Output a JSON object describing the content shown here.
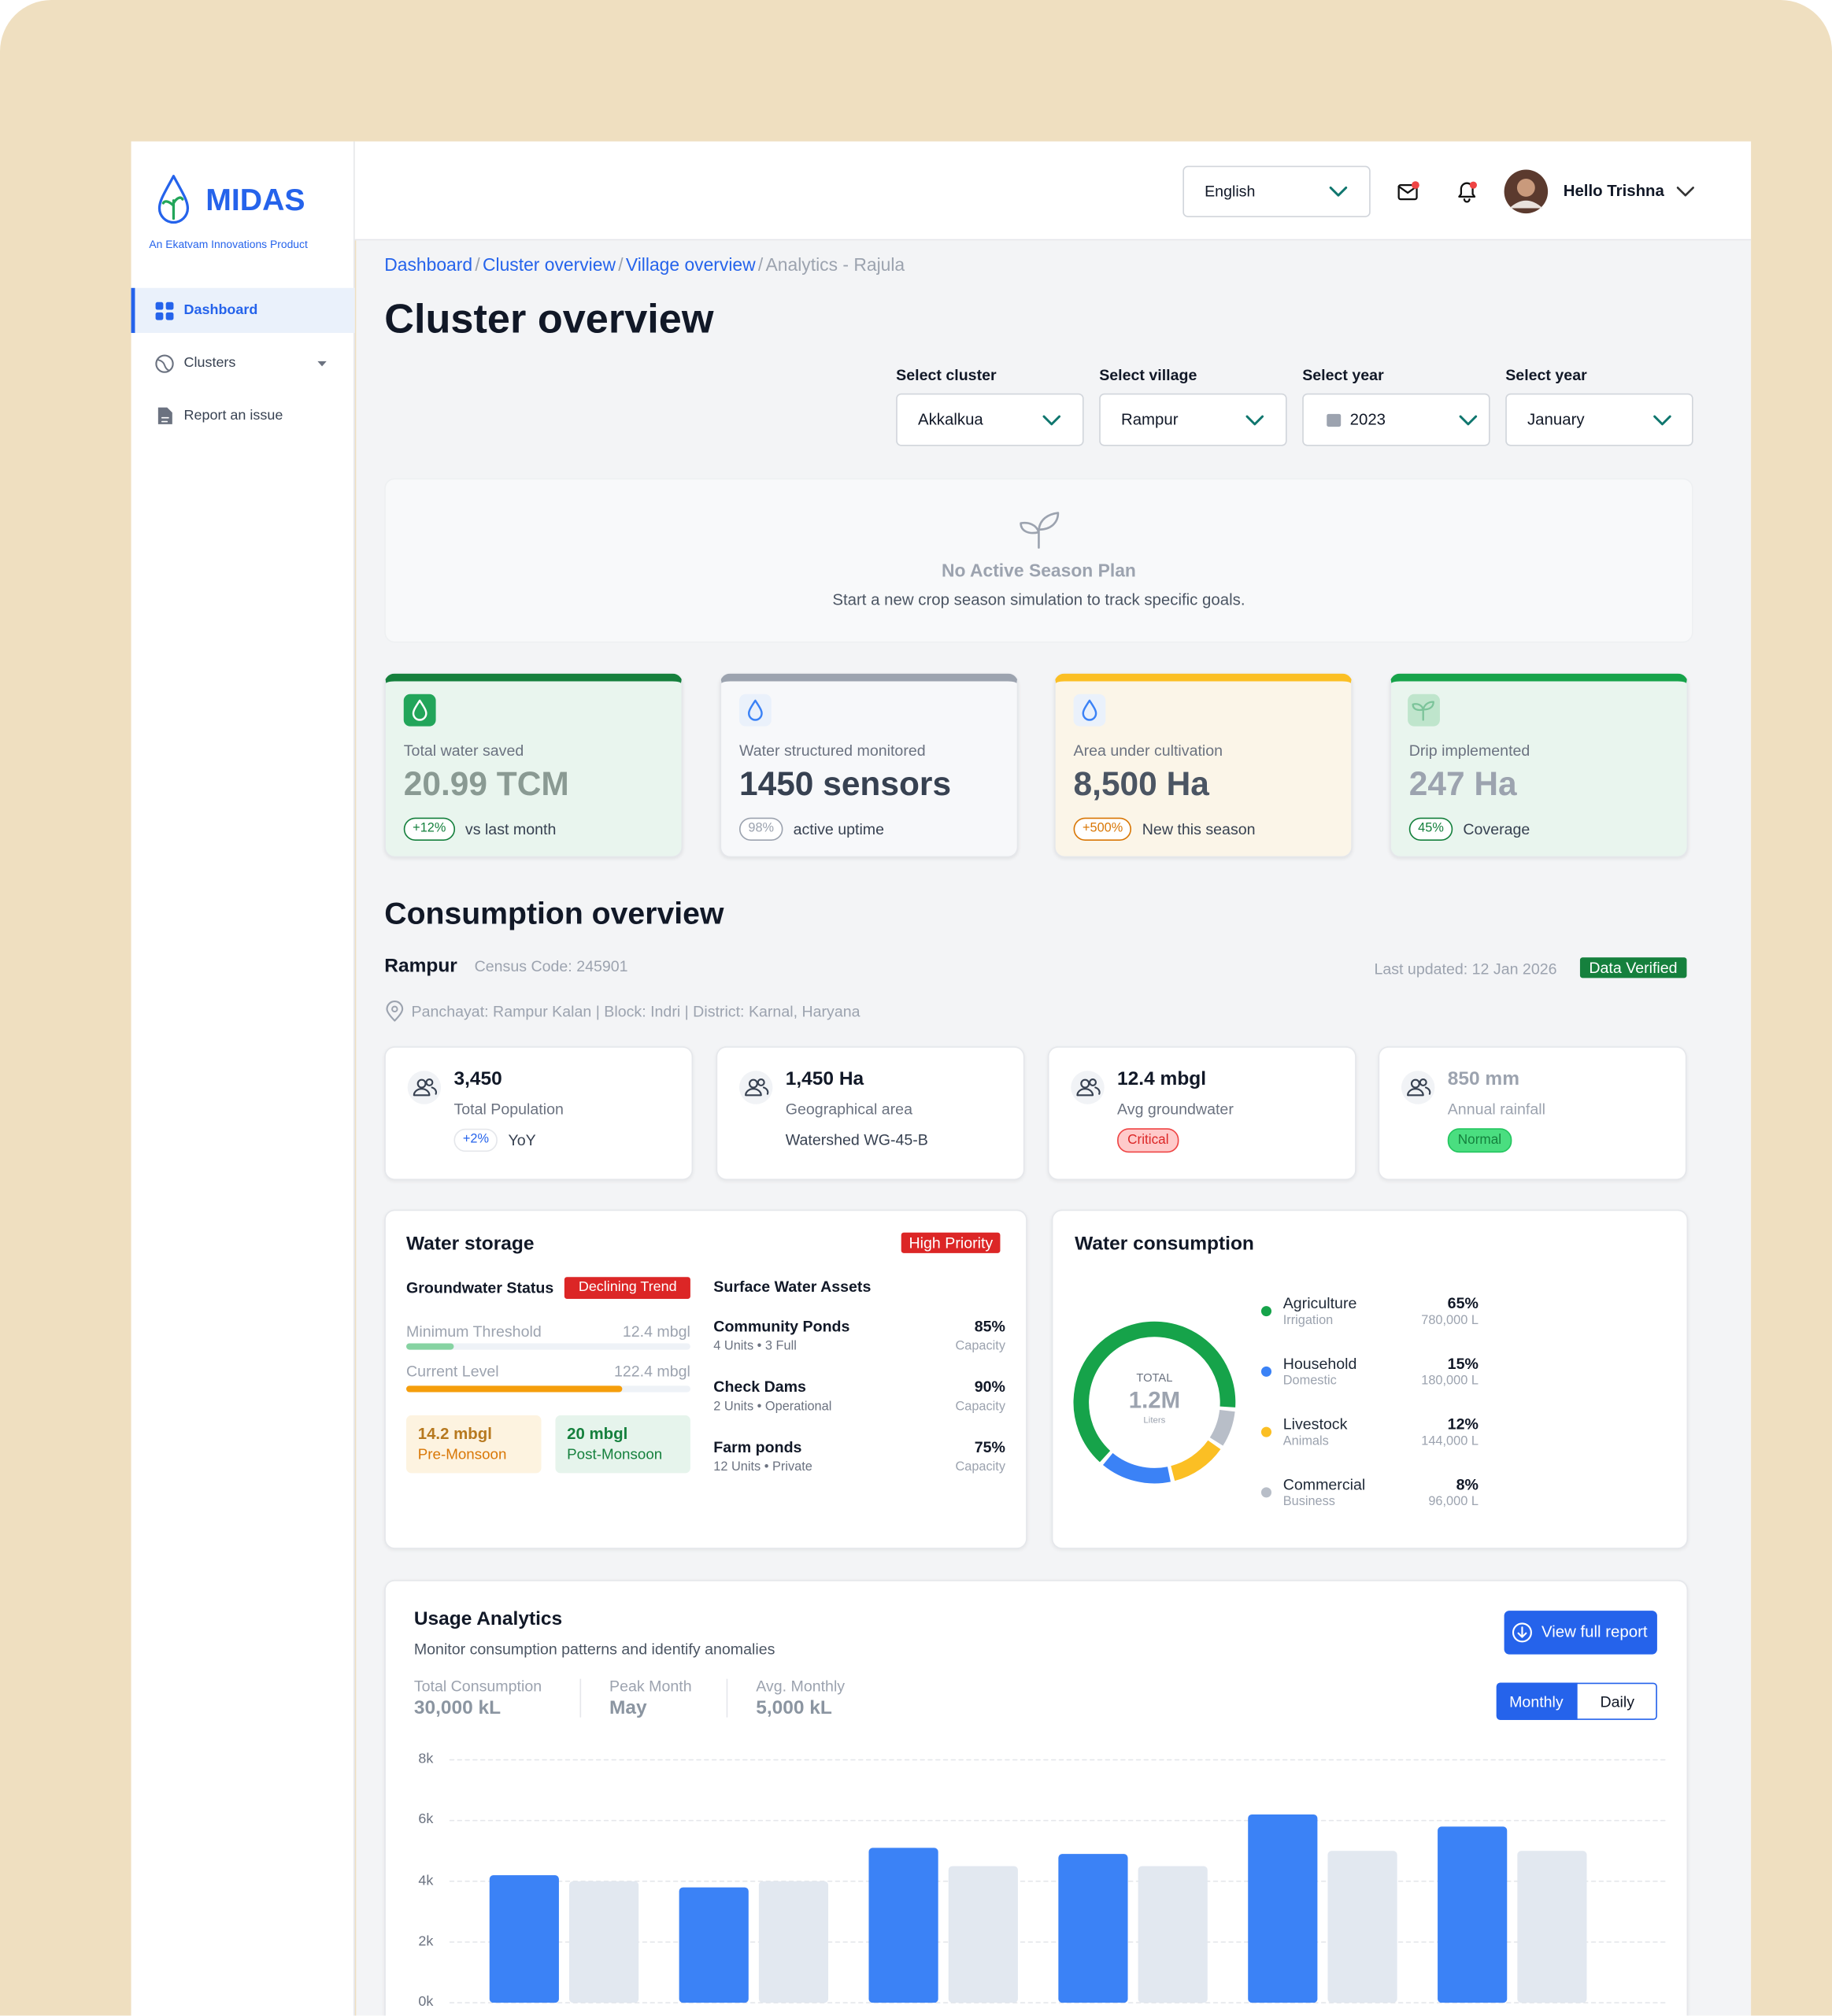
{
  "brand": {
    "name": "MIDAS",
    "tagline": "An Ekatvam Innovations Product"
  },
  "nav": [
    "Dashboard",
    "Clusters",
    "Report an issue"
  ],
  "header": {
    "language": "English",
    "greeting": "Hello Trishna"
  },
  "breadcrumb": {
    "items": [
      "Dashboard",
      "Cluster overview",
      "Village overview",
      "Analytics - Rajula"
    ],
    "separator": "/"
  },
  "page_title": "Cluster overview",
  "filters": [
    {
      "label": "Select cluster",
      "value": "Akkalkua"
    },
    {
      "label": "Select village",
      "value": "Rampur"
    },
    {
      "label": "Select year",
      "value": "2023"
    },
    {
      "label": "Select year",
      "value": "January"
    }
  ],
  "empty_state": {
    "title": "No Active Season Plan",
    "text": "Start a new crop season simulation to track specific goals."
  },
  "kpis": [
    {
      "label": "Total water saved",
      "value": "20.99 TCM",
      "change": "+12%",
      "note": "vs last month"
    },
    {
      "label": "Water structured monitored",
      "value": "1450 sensors",
      "change": "98%",
      "note": "active uptime"
    },
    {
      "label": "Area under cultivation",
      "value": "8,500 Ha",
      "change": "+500%",
      "note": "New this season"
    },
    {
      "label": "Drip implemented",
      "value": "247 Ha",
      "change": "45%",
      "note": "Coverage"
    }
  ],
  "village": {
    "section_title": "Consumption overview",
    "name": "Rampur",
    "census_code": "Census Code: 245901",
    "last_updated": "Last updated: 12 Jan 2026",
    "status": "Data Verified",
    "location": "Panchayat: Rampur Kalan | Block: Indri | District: Karnal, Haryana"
  },
  "stats": [
    {
      "value": "3,450",
      "label": "Total Population",
      "change": "+2%",
      "note": "YoY"
    },
    {
      "value": "1,450 Ha",
      "label": "Geographical area",
      "note": "Watershed WG-45-B"
    },
    {
      "value": "12.4 mbgl",
      "label": "Avg groundwater",
      "status": "Critical"
    },
    {
      "value": "850 mm",
      "label": "Annual rainfall",
      "status": "Normal"
    }
  ],
  "water_storage": {
    "title": "Water storage",
    "priority": "High Priority",
    "groundwater": {
      "title": "Groundwater Status",
      "trend": "Declining Trend",
      "levels": [
        {
          "label": "Minimum Threshold",
          "value": "12.4 mbgl"
        },
        {
          "label": "Current Level",
          "value": "122.4 mbgl"
        }
      ],
      "seasons": [
        {
          "value": "14.2 mbgl",
          "label": "Pre-Monsoon"
        },
        {
          "value": "20 mbgl",
          "label": "Post-Monsoon"
        }
      ]
    },
    "surface": {
      "title": "Surface Water Assets",
      "assets": [
        {
          "name": "Community Ponds",
          "detail": "4 Units • 3 Full",
          "value": "85%",
          "unit": "Capacity"
        },
        {
          "name": "Check Dams",
          "detail": "2 Units • Operational",
          "value": "90%",
          "unit": "Capacity"
        },
        {
          "name": "Farm ponds",
          "detail": "12 Units • Private",
          "value": "75%",
          "unit": "Capacity"
        }
      ]
    }
  },
  "usage": {
    "stats": [
      {
        "label": "Total Consumption",
        "value": "30,000 kL"
      },
      {
        "label": "Peak Month",
        "value": "May"
      },
      {
        "label": "Avg. Monthly",
        "value": "5,000 kL"
      }
    ],
    "action": "View full report",
    "views": [
      "Monthly",
      "Daily"
    ]
  },
  "chart_data": [
    {
      "type": "pie",
      "title": "Water consumption",
      "categories": [
        "Agriculture",
        "Household",
        "Livestock",
        "Commercial"
      ],
      "descriptions": [
        "Irrigation",
        "Domestic",
        "Animals",
        "Business"
      ],
      "values": [
        65,
        15,
        12,
        8
      ],
      "value_labels": [
        "65%",
        "15%",
        "12%",
        "8%"
      ],
      "volume_labels": [
        "780,000 L",
        "180,000 L",
        "144,000 L",
        "96,000 L"
      ],
      "colors": [
        "#16a34a",
        "#3b82f6",
        "#fbbf24",
        "#b8bec8"
      ],
      "center": {
        "label": "TOTAL",
        "value": "1.2M",
        "unit": "Liters"
      }
    },
    {
      "type": "bar",
      "title": "Usage Analytics",
      "subtitle": "Monitor consumption patterns and identify anomalies",
      "categories": [
        null,
        null,
        null,
        null,
        null,
        null
      ],
      "series": [
        {
          "color": "#3b82f6",
          "values": [
            4200,
            3800,
            5100,
            4900,
            6200,
            5800
          ]
        },
        {
          "color": "#e2e8f0",
          "values": [
            4000,
            4000,
            4500,
            4500,
            5000,
            5000
          ]
        }
      ],
      "ylim": [
        0,
        8000
      ],
      "yticks": [
        {
          "value": 0,
          "label": "0k"
        },
        {
          "value": 2000,
          "label": "2k"
        },
        {
          "value": 4000,
          "label": "4k"
        },
        {
          "value": 6000,
          "label": "6k"
        },
        {
          "value": 8000,
          "label": "8k"
        }
      ],
      "grid": true
    }
  ]
}
